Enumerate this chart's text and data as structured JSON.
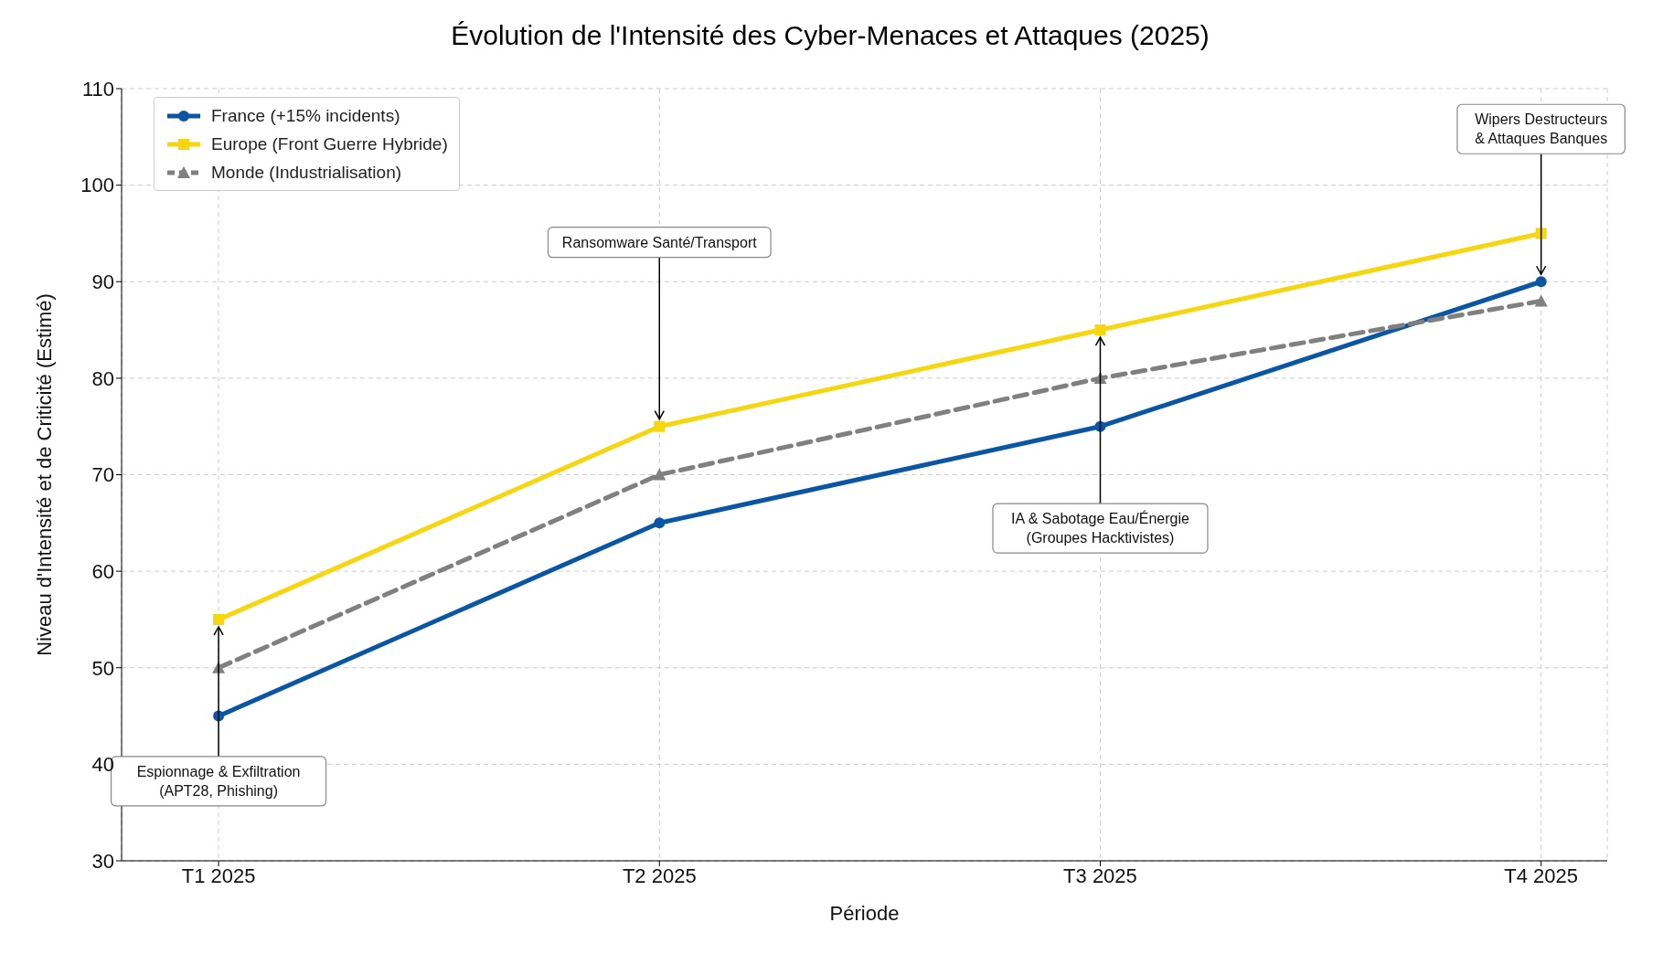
{
  "chart_data": {
    "type": "line",
    "title": "Évolution de l'Intensité des Cyber-Menaces et Attaques (2025)",
    "xlabel": "Période",
    "ylabel": "Niveau d'Intensité et de Criticité (Estimé)",
    "categories": [
      "T1 2025",
      "T2 2025",
      "T3 2025",
      "T4 2025"
    ],
    "series": [
      {
        "name": "France (+15% incidents)",
        "color": "#0b56a4",
        "values": [
          45,
          65,
          75,
          90
        ],
        "marker": "circle",
        "line_style": "solid"
      },
      {
        "name": "Europe (Front Guerre Hybride)",
        "color": "#f5d60f",
        "values": [
          55,
          75,
          85,
          95
        ],
        "marker": "square",
        "line_style": "solid"
      },
      {
        "name": "Monde (Industrialisation)",
        "color": "#808080",
        "values": [
          50,
          70,
          80,
          88
        ],
        "marker": "triangle",
        "line_style": "dashed"
      }
    ],
    "ylim": [
      30,
      110
    ],
    "yticks": [
      30,
      40,
      50,
      60,
      70,
      80,
      90,
      100,
      110
    ],
    "grid": true,
    "legend": "top left",
    "annotations": [
      {
        "text": "Espionnage & Exfiltration\n(APT28, Phishing)",
        "x": "T1 2025",
        "y": 55
      },
      {
        "text": "Ransomware Santé/Transport",
        "x": "T2 2025",
        "y": 75
      },
      {
        "text": "IA & Sabotage Eau/Énergie\n(Groupes Hacktivistes)",
        "x": "T3 2025",
        "y": 85
      },
      {
        "text": "Wipers Destructeurs\n& Attaques Banques",
        "x": "T4 2025",
        "y": 90
      }
    ]
  }
}
